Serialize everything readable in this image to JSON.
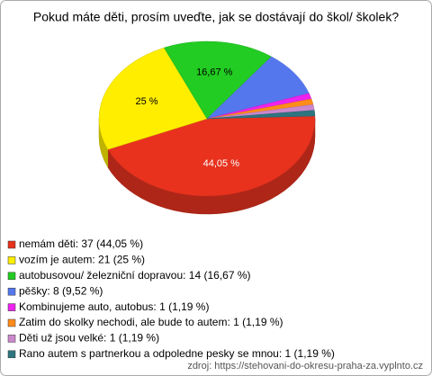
{
  "chart_data": {
    "type": "pie",
    "title": "Pokud máte děti, prosím uveďte, jak se dostávají do škol/ školek?",
    "categories": [
      "nemám děti",
      "vozím je autem",
      "autobusovou/ železniční dopravou",
      "pěšky",
      "Kombinujeme auto, autobus",
      "Zatim do skolky nechodi, ale bude to autem",
      "Děti už jsou velké",
      "Rano autem s partnerkou a odpoledne pesky se mnou"
    ],
    "values": [
      44.05,
      25,
      16.67,
      9.52,
      1.19,
      1.19,
      1.19,
      1.19
    ],
    "value_labels": [
      "44,05 %",
      "25 %",
      "16,67 %",
      null,
      null,
      null,
      null,
      null
    ],
    "legend_labels": [
      "nemám děti: 37 (44,05 %)",
      "vozím je autem: 21 (25 %)",
      "autobusovou/ železniční dopravou: 14 (16,67 %)",
      "pěšky: 8 (9,52 %)",
      "Kombinujeme auto, autobus: 1 (1,19 %)",
      "Zatim do skolky nechodi, ale bude to autem: 1 (1,19 %)",
      "Děti už jsou velké: 1 (1,19 %)",
      "Rano autem s partnerkou a odpoledne pesky se mnou: 1 (1,19 %)"
    ],
    "colors": [
      "#e8321e",
      "#ffee00",
      "#22cc22",
      "#5577ee",
      "#ee22ee",
      "#ff8c1a",
      "#cc88cc",
      "#2e7580"
    ],
    "source": "zdroj: https://stehovani-do-okresu-praha-za.vyplnto.cz"
  }
}
